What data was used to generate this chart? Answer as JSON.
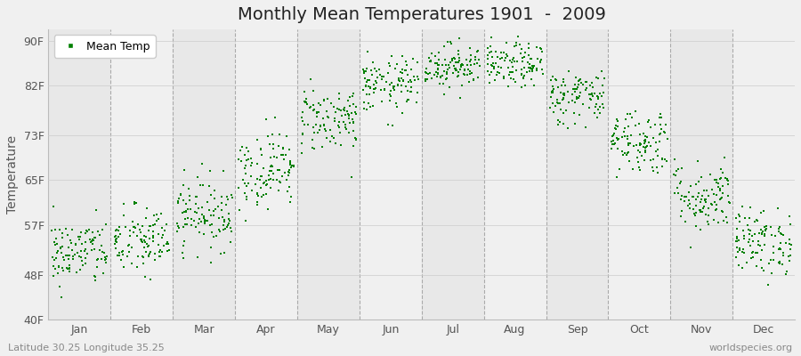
{
  "title": "Monthly Mean Temperatures 1901  -  2009",
  "ylabel": "Temperature",
  "bottom_left": "Latitude 30.25 Longitude 35.25",
  "bottom_right": "worldspecies.org",
  "legend_label": "Mean Temp",
  "yticks": [
    40,
    48,
    57,
    65,
    73,
    82,
    90
  ],
  "ytick_labels": [
    "40F",
    "48F",
    "57F",
    "65F",
    "73F",
    "82F",
    "90F"
  ],
  "ylim": [
    40,
    92
  ],
  "xlim": [
    0,
    12
  ],
  "months": [
    "Jan",
    "Feb",
    "Mar",
    "Apr",
    "May",
    "Jun",
    "Jul",
    "Aug",
    "Sep",
    "Oct",
    "Nov",
    "Dec"
  ],
  "monthly_means_F": [
    52.0,
    54.0,
    59.0,
    67.0,
    76.0,
    82.0,
    85.5,
    85.5,
    80.0,
    72.0,
    62.0,
    54.0
  ],
  "monthly_std_F": [
    3.0,
    3.2,
    3.2,
    3.5,
    3.0,
    2.5,
    2.0,
    2.0,
    2.5,
    3.0,
    3.2,
    3.0
  ],
  "n_years": 109,
  "dot_color": "#008000",
  "dot_size": 4,
  "background_color": "#f0f0f0",
  "band_colors": [
    "#e8e8e8",
    "#f0f0f0"
  ],
  "grid_color": "#cccccc",
  "vline_color": "#aaaaaa",
  "title_fontsize": 14,
  "ylabel_fontsize": 10,
  "tick_fontsize": 9,
  "annotation_fontsize": 8,
  "legend_fontsize": 9,
  "seed": 42
}
